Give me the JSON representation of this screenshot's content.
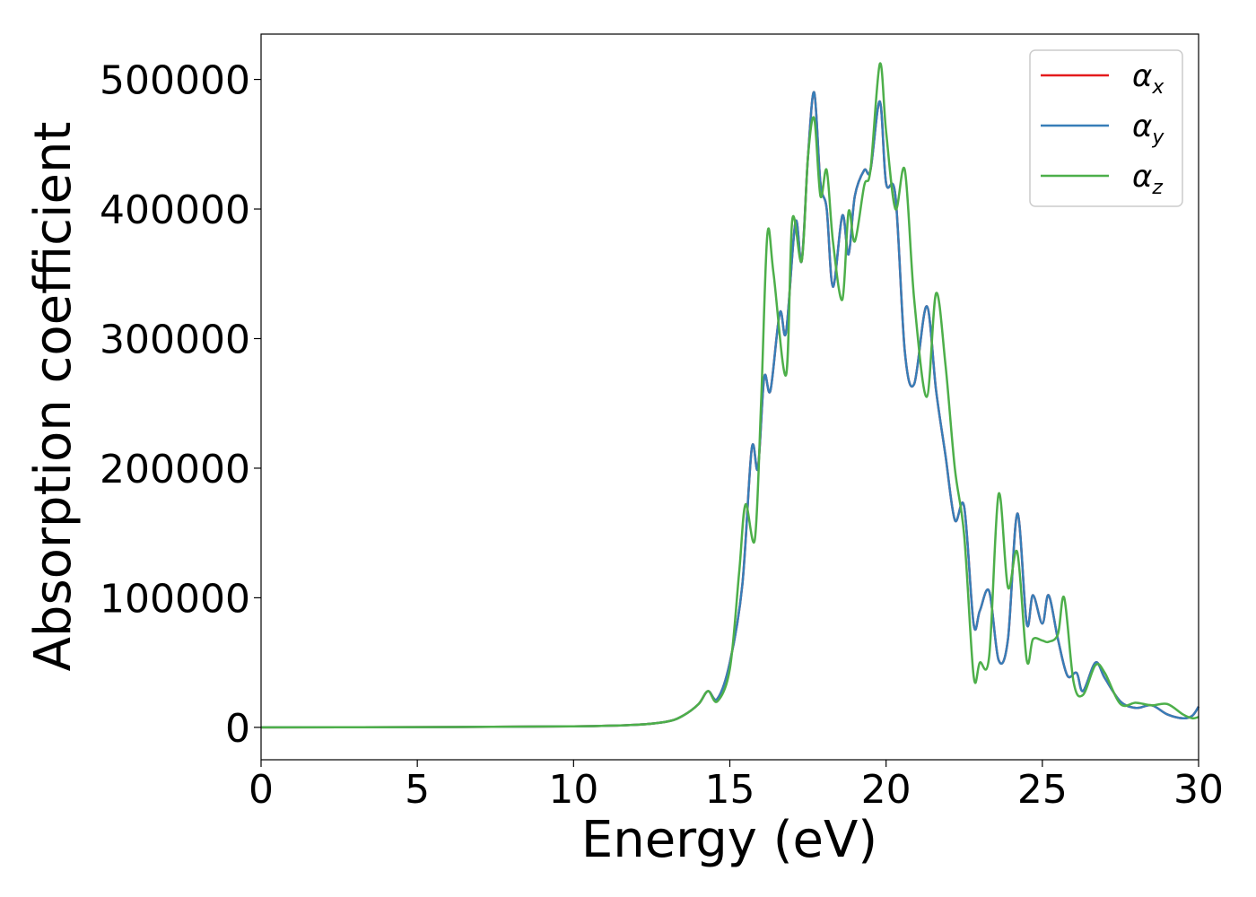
{
  "chart_data": {
    "type": "line",
    "title": "",
    "xlabel": "Energy (eV)",
    "ylabel": "Absorption coefficient",
    "xlim": [
      0,
      30
    ],
    "ylim": [
      -25000,
      535000
    ],
    "xticks": [
      0,
      5,
      10,
      15,
      20,
      25,
      30
    ],
    "yticks": [
      0,
      100000,
      200000,
      300000,
      400000,
      500000
    ],
    "grid": false,
    "legend_position": "top-right",
    "series": [
      {
        "name": "α_x",
        "label_base": "α",
        "label_sub": "x",
        "color": "#e41a1c",
        "x": [
          0,
          5,
          10,
          12,
          13,
          13.5,
          14,
          14.3,
          14.6,
          15,
          15.4,
          15.7,
          15.9,
          16.1,
          16.3,
          16.6,
          16.8,
          17.1,
          17.3,
          17.5,
          17.7,
          17.9,
          18.1,
          18.3,
          18.6,
          18.8,
          19.0,
          19.3,
          19.5,
          19.8,
          20.0,
          20.3,
          20.6,
          20.9,
          21.3,
          21.6,
          21.9,
          22.2,
          22.5,
          22.8,
          23.0,
          23.3,
          23.6,
          23.9,
          24.2,
          24.5,
          24.7,
          25.0,
          25.2,
          25.5,
          25.8,
          26.1,
          26.3,
          26.7,
          27.0,
          27.5,
          28.0,
          28.5,
          29.0,
          29.5,
          29.8,
          30.0
        ],
        "y": [
          0,
          200,
          800,
          2000,
          4500,
          9000,
          18000,
          28000,
          22000,
          50000,
          110000,
          215000,
          200000,
          270000,
          260000,
          320000,
          305000,
          390000,
          360000,
          440000,
          490000,
          420000,
          400000,
          340000,
          395000,
          365000,
          410000,
          430000,
          430000,
          483000,
          420000,
          410000,
          290000,
          265000,
          325000,
          260000,
          210000,
          160000,
          170000,
          80000,
          90000,
          105000,
          52000,
          68000,
          165000,
          80000,
          102000,
          80000,
          102000,
          68000,
          40000,
          42000,
          28000,
          50000,
          38000,
          20000,
          15000,
          17000,
          10000,
          7000,
          9000,
          16000
        ]
      },
      {
        "name": "α_y",
        "label_base": "α",
        "label_sub": "y",
        "color": "#377eb8",
        "x": [
          0,
          5,
          10,
          12,
          13,
          13.5,
          14,
          14.3,
          14.6,
          15,
          15.4,
          15.7,
          15.9,
          16.1,
          16.3,
          16.6,
          16.8,
          17.1,
          17.3,
          17.5,
          17.7,
          17.9,
          18.1,
          18.3,
          18.6,
          18.8,
          19.0,
          19.3,
          19.5,
          19.8,
          20.0,
          20.3,
          20.6,
          20.9,
          21.3,
          21.6,
          21.9,
          22.2,
          22.5,
          22.8,
          23.0,
          23.3,
          23.6,
          23.9,
          24.2,
          24.5,
          24.7,
          25.0,
          25.2,
          25.5,
          25.8,
          26.1,
          26.3,
          26.7,
          27.0,
          27.5,
          28.0,
          28.5,
          29.0,
          29.5,
          29.8,
          30.0
        ],
        "y": [
          0,
          200,
          800,
          2000,
          4500,
          9000,
          18000,
          28000,
          22000,
          50000,
          110000,
          215000,
          200000,
          270000,
          260000,
          320000,
          305000,
          390000,
          360000,
          440000,
          490000,
          420000,
          400000,
          340000,
          395000,
          365000,
          410000,
          430000,
          430000,
          483000,
          420000,
          410000,
          290000,
          265000,
          325000,
          260000,
          210000,
          160000,
          170000,
          80000,
          90000,
          105000,
          52000,
          68000,
          165000,
          80000,
          102000,
          80000,
          102000,
          68000,
          40000,
          42000,
          28000,
          50000,
          38000,
          20000,
          15000,
          17000,
          10000,
          7000,
          9000,
          16000
        ]
      },
      {
        "name": "α_z",
        "label_base": "α",
        "label_sub": "z",
        "color": "#4daf4a",
        "x": [
          0,
          5,
          10,
          12,
          13,
          13.5,
          14,
          14.3,
          14.6,
          15,
          15.3,
          15.5,
          15.8,
          16.0,
          16.2,
          16.4,
          16.8,
          17.0,
          17.3,
          17.5,
          17.7,
          17.9,
          18.1,
          18.3,
          18.6,
          18.8,
          19.0,
          19.3,
          19.5,
          19.8,
          20.0,
          20.3,
          20.6,
          20.9,
          21.3,
          21.6,
          21.9,
          22.2,
          22.5,
          22.8,
          23.0,
          23.3,
          23.6,
          23.9,
          24.2,
          24.5,
          24.7,
          25.0,
          25.2,
          25.5,
          25.7,
          26.0,
          26.3,
          26.7,
          27.0,
          27.5,
          28.0,
          28.5,
          29.0,
          29.5,
          29.8,
          30.0
        ],
        "y": [
          0,
          200,
          800,
          2000,
          4500,
          9000,
          18000,
          28000,
          20000,
          45000,
          120000,
          172000,
          145000,
          250000,
          380000,
          350000,
          272000,
          392000,
          360000,
          440000,
          470000,
          410000,
          430000,
          375000,
          330000,
          398000,
          375000,
          418000,
          430000,
          512000,
          460000,
          400000,
          430000,
          330000,
          255000,
          335000,
          280000,
          200000,
          148000,
          40000,
          50000,
          55000,
          180000,
          108000,
          135000,
          52000,
          68000,
          67000,
          66000,
          72000,
          100000,
          35000,
          25000,
          48000,
          42000,
          18000,
          19000,
          17000,
          18000,
          10000,
          7000,
          8000
        ]
      }
    ]
  }
}
